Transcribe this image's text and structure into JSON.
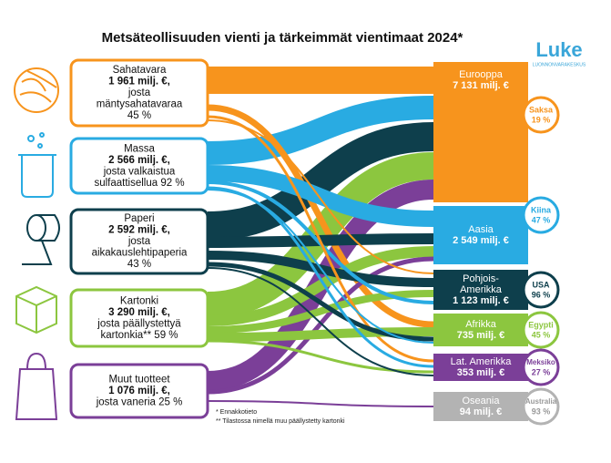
{
  "header": {
    "title": "Metsäteollisuuden vienti ja tärkeimmät vientimaat 2024*"
  },
  "logo": {
    "name": "Luke",
    "subtitle": "LUONNONVARAKESKUS"
  },
  "products": [
    {
      "lines": [
        "Sahatavara",
        "1 961 milj. €,",
        "josta",
        "mäntysahatavaraa",
        "45 %"
      ],
      "color": "#f7941d"
    },
    {
      "lines": [
        "Massa",
        "2 566 milj. €,",
        "josta valkaistua",
        "sulfaattisellua 92 %"
      ],
      "color": "#29abe2"
    },
    {
      "lines": [
        "Paperi",
        "2 592 milj. €,",
        "josta",
        "aikakauslehtipaperia",
        "43 %"
      ],
      "color": "#0e3f4c"
    },
    {
      "lines": [
        "Kartonki",
        "3 290 milj. €,",
        "josta päällystettyä",
        "kartonkia** 59 %"
      ],
      "color": "#8cc63f"
    },
    {
      "lines": [
        "Muut tuotteet",
        "1 076 milj. €,",
        "josta vaneria 25 %"
      ],
      "color": "#7b3f98"
    }
  ],
  "regions": [
    {
      "lines": [
        "Eurooppa",
        "7 131 milj. €"
      ],
      "country": [
        "Saksa",
        "19 %"
      ],
      "color": "#f7941d"
    },
    {
      "lines": [
        "Aasia",
        "2 549 milj. €"
      ],
      "country": [
        "Kiina",
        "47 %"
      ],
      "color": "#29abe2"
    },
    {
      "lines": [
        "Pohjois-",
        "Amerikka",
        "1 123 milj. €"
      ],
      "country": [
        "USA",
        "96 %"
      ],
      "color": "#0e3f4c"
    },
    {
      "lines": [
        "Afrikka",
        "735 milj. €"
      ],
      "country": [
        "Egypti",
        "45 %"
      ],
      "color": "#8cc63f"
    },
    {
      "lines": [
        "Lat. Amerikka",
        "353 milj. €"
      ],
      "country": [
        "Meksiko",
        "27 %"
      ],
      "color": "#7b3f98"
    },
    {
      "lines": [
        "Oseania",
        "94 milj. €"
      ],
      "country": [
        "Australia",
        "93 %"
      ],
      "color": "#b3b3b3"
    }
  ],
  "notes": [
    "* Ennakkotieto",
    "** Tilastossa nimellä muu päällystetty kartonki"
  ]
}
